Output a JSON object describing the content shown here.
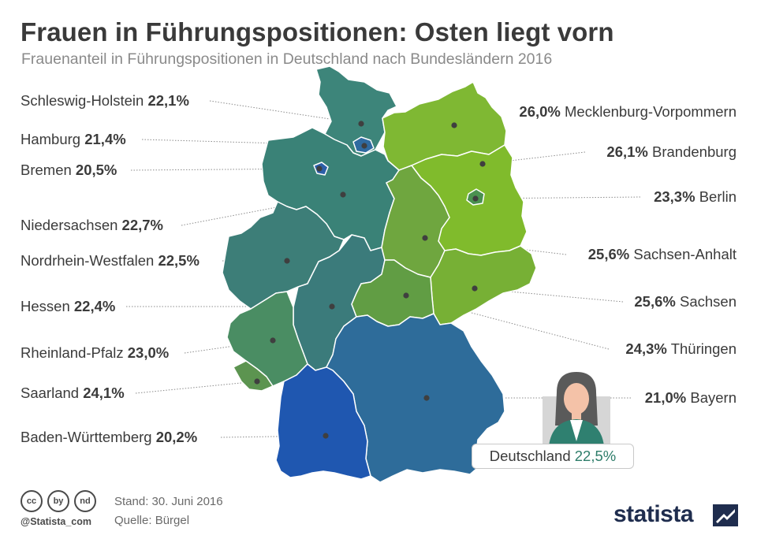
{
  "title": "Frauen in Führungspositionen: Osten liegt vorn",
  "subtitle": "Frauenanteil in Führungspositionen in Deutschland nach Bundesländern 2016",
  "regions": [
    {
      "name": "Schleswig-Holstein",
      "value": "22,1%",
      "color": "#3d857a"
    },
    {
      "name": "Hamburg",
      "value": "21,4%",
      "color": "#2f6aa0"
    },
    {
      "name": "Bremen",
      "value": "20,5%",
      "color": "#2c5fa8"
    },
    {
      "name": "Niedersachsen",
      "value": "22,7%",
      "color": "#3a8277"
    },
    {
      "name": "Nordrhein-Westfalen",
      "value": "22,5%",
      "color": "#3d7e78"
    },
    {
      "name": "Hessen",
      "value": "22,4%",
      "color": "#3b7b7b"
    },
    {
      "name": "Rheinland-Pfalz",
      "value": "23,0%",
      "color": "#4a8d63"
    },
    {
      "name": "Saarland",
      "value": "24,1%",
      "color": "#5c9450"
    },
    {
      "name": "Baden-Württemberg",
      "value": "20,2%",
      "color": "#1f57b0"
    },
    {
      "name": "Mecklenburg-Vorpommern",
      "value": "26,0%",
      "color": "#7fb833"
    },
    {
      "name": "Brandenburg",
      "value": "26,1%",
      "color": "#80bb2c"
    },
    {
      "name": "Berlin",
      "value": "23,3%",
      "color": "#4a9150"
    },
    {
      "name": "Sachsen-Anhalt",
      "value": "25,6%",
      "color": "#6fa63f"
    },
    {
      "name": "Sachsen",
      "value": "25,6%",
      "color": "#77b035"
    },
    {
      "name": "Thüringen",
      "value": "24,3%",
      "color": "#619d44"
    },
    {
      "name": "Bayern",
      "value": "21,0%",
      "color": "#2e6c9a"
    }
  ],
  "national": {
    "name": "Deutschland",
    "value": "22,5%"
  },
  "footer": {
    "cc_icons": [
      "cc",
      "by",
      "nd"
    ],
    "handle": "@Statista_com",
    "stand": "Stand: 30. Juni 2016",
    "quelle": "Quelle: Bürgel",
    "brand": "statista"
  },
  "colors": {
    "title": "#3a3a3a",
    "subtitle": "#8a8a8a",
    "brand": "#1f2d4e",
    "national_value": "#2e7d6a"
  }
}
